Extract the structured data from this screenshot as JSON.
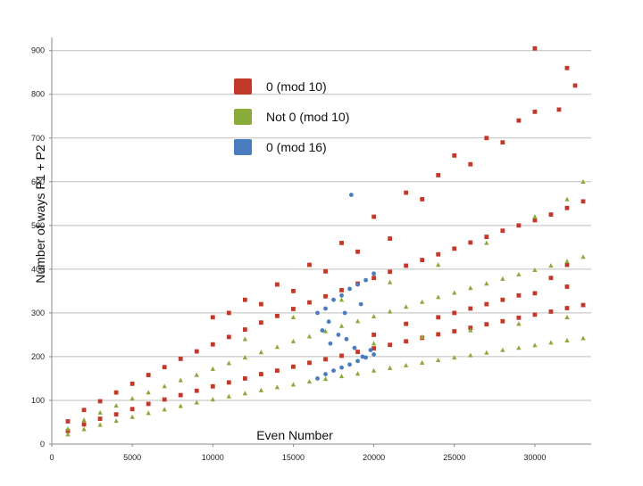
{
  "chart_data": {
    "type": "scatter",
    "title": "",
    "xlabel": "Even Number",
    "ylabel": "Number of ways P1 + P2",
    "xlim": [
      0,
      33500
    ],
    "ylim": [
      0,
      930
    ],
    "xticks": [
      0,
      5000,
      10000,
      15000,
      20000,
      25000,
      30000
    ],
    "yticks": [
      0,
      100,
      200,
      300,
      400,
      500,
      600,
      700,
      800,
      900
    ],
    "grid": "horizontal",
    "legend_position": "top-left",
    "series": [
      {
        "name": "0 (mod 10)",
        "color": "#c0392b",
        "marker": "square",
        "values": [
          [
            1000,
            52
          ],
          [
            2000,
            78
          ],
          [
            3000,
            98
          ],
          [
            4000,
            118
          ],
          [
            5000,
            138
          ],
          [
            6000,
            158
          ],
          [
            7000,
            176
          ],
          [
            8000,
            195
          ],
          [
            9000,
            212
          ],
          [
            10000,
            228
          ],
          [
            11000,
            245
          ],
          [
            12000,
            262
          ],
          [
            13000,
            278
          ],
          [
            14000,
            293
          ],
          [
            15000,
            309
          ],
          [
            16000,
            324
          ],
          [
            17000,
            338
          ],
          [
            18000,
            352
          ],
          [
            19000,
            367
          ],
          [
            20000,
            380
          ],
          [
            21000,
            394
          ],
          [
            22000,
            408
          ],
          [
            23000,
            421
          ],
          [
            24000,
            434
          ],
          [
            25000,
            447
          ],
          [
            26000,
            461
          ],
          [
            27000,
            474
          ],
          [
            28000,
            488
          ],
          [
            29000,
            500
          ],
          [
            30000,
            512
          ],
          [
            31000,
            525
          ],
          [
            32000,
            540
          ],
          [
            33000,
            555
          ],
          [
            1000,
            30
          ],
          [
            2000,
            45
          ],
          [
            3000,
            58
          ],
          [
            4000,
            68
          ],
          [
            5000,
            80
          ],
          [
            6000,
            92
          ],
          [
            7000,
            102
          ],
          [
            8000,
            112
          ],
          [
            9000,
            122
          ],
          [
            10000,
            132
          ],
          [
            11000,
            141
          ],
          [
            12000,
            150
          ],
          [
            13000,
            160
          ],
          [
            14000,
            168
          ],
          [
            15000,
            177
          ],
          [
            16000,
            186
          ],
          [
            17000,
            194
          ],
          [
            18000,
            202
          ],
          [
            19000,
            211
          ],
          [
            20000,
            219
          ],
          [
            21000,
            227
          ],
          [
            22000,
            235
          ],
          [
            23000,
            243
          ],
          [
            24000,
            251
          ],
          [
            25000,
            258
          ],
          [
            26000,
            266
          ],
          [
            27000,
            274
          ],
          [
            28000,
            281
          ],
          [
            29000,
            289
          ],
          [
            30000,
            296
          ],
          [
            31000,
            303
          ],
          [
            32000,
            311
          ],
          [
            33000,
            318
          ],
          [
            10000,
            290
          ],
          [
            12000,
            330
          ],
          [
            14000,
            365
          ],
          [
            16000,
            410
          ],
          [
            18000,
            460
          ],
          [
            20000,
            520
          ],
          [
            22000,
            575
          ],
          [
            24000,
            615
          ],
          [
            26000,
            640
          ],
          [
            28000,
            690
          ],
          [
            30000,
            760
          ],
          [
            30000,
            905
          ],
          [
            32000,
            860
          ],
          [
            32500,
            820
          ],
          [
            31500,
            765
          ],
          [
            29000,
            740
          ],
          [
            27000,
            700
          ],
          [
            25000,
            660
          ],
          [
            23000,
            560
          ],
          [
            21000,
            470
          ],
          [
            19000,
            440
          ],
          [
            17000,
            395
          ],
          [
            15000,
            350
          ],
          [
            13000,
            320
          ],
          [
            11000,
            300
          ],
          [
            25000,
            300
          ],
          [
            27000,
            320
          ],
          [
            29000,
            340
          ],
          [
            31000,
            380
          ],
          [
            32000,
            410
          ],
          [
            20000,
            250
          ],
          [
            22000,
            275
          ],
          [
            24000,
            290
          ],
          [
            26000,
            310
          ],
          [
            28000,
            330
          ],
          [
            30000,
            345
          ],
          [
            32000,
            360
          ]
        ]
      },
      {
        "name": "Not 0 (mod 10)",
        "color": "#8aaa3a",
        "marker": "triangle",
        "values": [
          [
            1000,
            35
          ],
          [
            2000,
            55
          ],
          [
            3000,
            72
          ],
          [
            4000,
            88
          ],
          [
            5000,
            104
          ],
          [
            6000,
            118
          ],
          [
            7000,
            132
          ],
          [
            8000,
            146
          ],
          [
            9000,
            158
          ],
          [
            10000,
            172
          ],
          [
            11000,
            185
          ],
          [
            12000,
            198
          ],
          [
            13000,
            210
          ],
          [
            14000,
            222
          ],
          [
            15000,
            235
          ],
          [
            16000,
            246
          ],
          [
            17000,
            258
          ],
          [
            18000,
            270
          ],
          [
            19000,
            281
          ],
          [
            20000,
            292
          ],
          [
            21000,
            303
          ],
          [
            22000,
            314
          ],
          [
            23000,
            325
          ],
          [
            24000,
            336
          ],
          [
            25000,
            346
          ],
          [
            26000,
            357
          ],
          [
            27000,
            367
          ],
          [
            28000,
            378
          ],
          [
            29000,
            388
          ],
          [
            30000,
            398
          ],
          [
            31000,
            408
          ],
          [
            32000,
            418
          ],
          [
            33000,
            428
          ],
          [
            1000,
            22
          ],
          [
            2000,
            34
          ],
          [
            3000,
            44
          ],
          [
            4000,
            53
          ],
          [
            5000,
            62
          ],
          [
            6000,
            71
          ],
          [
            7000,
            79
          ],
          [
            8000,
            87
          ],
          [
            9000,
            95
          ],
          [
            10000,
            102
          ],
          [
            11000,
            109
          ],
          [
            12000,
            116
          ],
          [
            13000,
            123
          ],
          [
            14000,
            130
          ],
          [
            15000,
            136
          ],
          [
            16000,
            143
          ],
          [
            17000,
            149
          ],
          [
            18000,
            155
          ],
          [
            19000,
            161
          ],
          [
            20000,
            168
          ],
          [
            21000,
            174
          ],
          [
            22000,
            180
          ],
          [
            23000,
            186
          ],
          [
            24000,
            192
          ],
          [
            25000,
            198
          ],
          [
            26000,
            203
          ],
          [
            27000,
            209
          ],
          [
            28000,
            215
          ],
          [
            29000,
            220
          ],
          [
            30000,
            226
          ],
          [
            31000,
            232
          ],
          [
            32000,
            237
          ],
          [
            33000,
            242
          ],
          [
            12000,
            240
          ],
          [
            15000,
            290
          ],
          [
            18000,
            330
          ],
          [
            21000,
            370
          ],
          [
            24000,
            410
          ],
          [
            27000,
            460
          ],
          [
            30000,
            520
          ],
          [
            32000,
            560
          ],
          [
            33000,
            600
          ],
          [
            20000,
            230
          ],
          [
            23000,
            245
          ],
          [
            26000,
            260
          ],
          [
            29000,
            275
          ],
          [
            32000,
            290
          ]
        ]
      },
      {
        "name": "0 (mod 16)",
        "color": "#4a7cc0",
        "marker": "circle",
        "values": [
          [
            16500,
            300
          ],
          [
            17000,
            310
          ],
          [
            17500,
            330
          ],
          [
            18000,
            340
          ],
          [
            18500,
            355
          ],
          [
            19000,
            365
          ],
          [
            19500,
            375
          ],
          [
            20000,
            390
          ],
          [
            16500,
            150
          ],
          [
            17000,
            160
          ],
          [
            17500,
            168
          ],
          [
            18000,
            175
          ],
          [
            18500,
            182
          ],
          [
            19000,
            190
          ],
          [
            19500,
            198
          ],
          [
            20000,
            205
          ],
          [
            16800,
            260
          ],
          [
            17300,
            230
          ],
          [
            17800,
            250
          ],
          [
            18300,
            240
          ],
          [
            18800,
            220
          ],
          [
            19300,
            200
          ],
          [
            19800,
            215
          ],
          [
            17200,
            280
          ],
          [
            18200,
            300
          ],
          [
            19200,
            320
          ],
          [
            18600,
            570
          ]
        ]
      }
    ]
  }
}
